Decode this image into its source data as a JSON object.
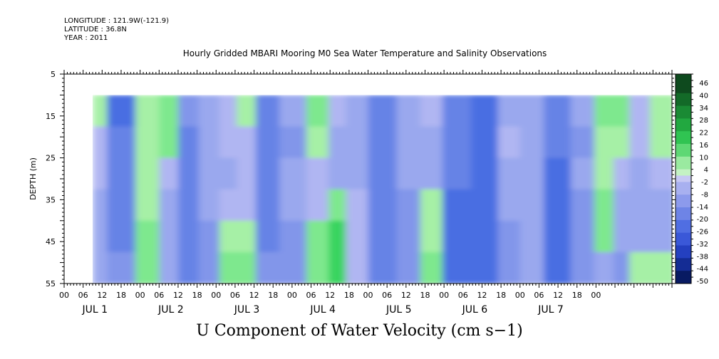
{
  "header": {
    "longitude": "LONGITUDE : 121.9W(-121.9)",
    "latitude": "LATITUDE : 36.8N",
    "year": "YEAR : 2011"
  },
  "chart_data": {
    "type": "heatmap",
    "title": "Hourly Gridded MBARI Mooring M0 Sea Water Temperature and Salinity Observations",
    "bottom_title": "U Component of Water Velocity (cm s−1)",
    "xlabel": "",
    "ylabel": "DEPTH (m)",
    "y_ticks": [
      "5",
      "15",
      "25",
      "35",
      "45",
      "55"
    ],
    "ylim": [
      5,
      55
    ],
    "hour_ticks": [
      "00",
      "06",
      "12",
      "18",
      "00",
      "06",
      "12",
      "18",
      "00",
      "06",
      "12",
      "18",
      "00",
      "06",
      "12",
      "18",
      "00",
      "06",
      "12",
      "18",
      "00",
      "06",
      "12",
      "18",
      "00",
      "06",
      "12",
      "18",
      "00"
    ],
    "day_labels": [
      "JUL  1",
      "JUL  2",
      "JUL  3",
      "JUL  4",
      "JUL  5",
      "JUL  6",
      "JUL  7"
    ],
    "data_start_hour": 9,
    "data_depth_range": [
      10,
      55
    ],
    "colorbar_labels": [
      "46",
      "40",
      "34",
      "28",
      "22",
      "16",
      "10",
      "4",
      "-2",
      "-8",
      "-14",
      "-20",
      "-26",
      "-32",
      "-38",
      "-44",
      "-50"
    ],
    "colorbar_levels": [
      -50,
      -47,
      -44,
      -41,
      -38,
      -35,
      -32,
      -29,
      -26,
      -23,
      -20,
      -17,
      -14,
      -11,
      -8,
      -5,
      -2,
      1,
      4,
      7,
      10,
      13,
      16,
      19,
      22,
      25,
      28,
      31,
      34,
      37,
      40,
      43,
      46,
      49
    ],
    "colors": {
      "light_green": "#a6f0a6",
      "light_blue": "#a8b4f0",
      "mid_blue": "#6e8ae8",
      "deep_blue": "#3a5fe0",
      "green": "#3ee06a",
      "dark_navy": "#000c5a",
      "dark_green": "#0a4d1a"
    },
    "columns": [
      {
        "x_hour": 9,
        "values": [
          5,
          0,
          -3,
          -12,
          -12,
          -10
        ]
      },
      {
        "x_hour": 18,
        "values": [
          -28,
          -24,
          -22,
          -20,
          -20,
          -18
        ]
      },
      {
        "x_hour": 27,
        "values": [
          6,
          4,
          6,
          5,
          8,
          10
        ]
      },
      {
        "x_hour": 33,
        "values": [
          15,
          10,
          0,
          -8,
          -10,
          -12
        ]
      },
      {
        "x_hour": 39,
        "values": [
          -18,
          -20,
          -22,
          -24,
          -22,
          -20
        ]
      },
      {
        "x_hour": 46,
        "values": [
          -10,
          -8,
          -10,
          -12,
          -14,
          -18
        ]
      },
      {
        "x_hour": 52,
        "values": [
          -4,
          -6,
          -8,
          -4,
          5,
          8
        ]
      },
      {
        "x_hour": 57,
        "values": [
          2,
          0,
          -2,
          0,
          6,
          10
        ]
      },
      {
        "x_hour": 64,
        "values": [
          -20,
          -22,
          -22,
          -22,
          -20,
          -18
        ]
      },
      {
        "x_hour": 72,
        "values": [
          -12,
          -14,
          -12,
          -12,
          -14,
          -16
        ]
      },
      {
        "x_hour": 81,
        "values": [
          8,
          2,
          -4,
          -4,
          12,
          14
        ]
      },
      {
        "x_hour": 86,
        "values": [
          -2,
          -8,
          -8,
          8,
          18,
          18
        ]
      },
      {
        "x_hour": 92,
        "values": [
          -10,
          -12,
          -12,
          -6,
          -4,
          -4
        ]
      },
      {
        "x_hour": 100,
        "values": [
          -24,
          -24,
          -20,
          -20,
          -22,
          -24
        ]
      },
      {
        "x_hour": 110,
        "values": [
          -12,
          -8,
          -12,
          -14,
          -14,
          -14
        ]
      },
      {
        "x_hour": 115,
        "values": [
          -6,
          -8,
          -8,
          4,
          6,
          8
        ]
      },
      {
        "x_hour": 124,
        "values": [
          -20,
          -22,
          -24,
          -26,
          -26,
          -26
        ]
      },
      {
        "x_hour": 133,
        "values": [
          -30,
          -30,
          -28,
          -28,
          -28,
          -30
        ]
      },
      {
        "x_hour": 141,
        "values": [
          -12,
          -6,
          -10,
          -12,
          -14,
          -16
        ]
      },
      {
        "x_hour": 147,
        "values": [
          -8,
          -10,
          -12,
          -10,
          -10,
          -12
        ]
      },
      {
        "x_hour": 156,
        "values": [
          -24,
          -24,
          -26,
          -30,
          -30,
          -28
        ]
      },
      {
        "x_hour": 164,
        "values": [
          -12,
          -14,
          -12,
          -14,
          -16,
          -16
        ]
      },
      {
        "x_hour": 171,
        "values": [
          8,
          4,
          6,
          10,
          8,
          -8
        ]
      },
      {
        "x_hour": 176,
        "values": [
          12,
          6,
          -2,
          -10,
          -12,
          -16
        ]
      },
      {
        "x_hour": 181,
        "values": [
          0,
          -6,
          -10,
          -12,
          -8,
          6
        ]
      },
      {
        "x_hour": 189,
        "values": [
          6,
          2,
          -6,
          -8,
          -12,
          4
        ]
      }
    ]
  }
}
